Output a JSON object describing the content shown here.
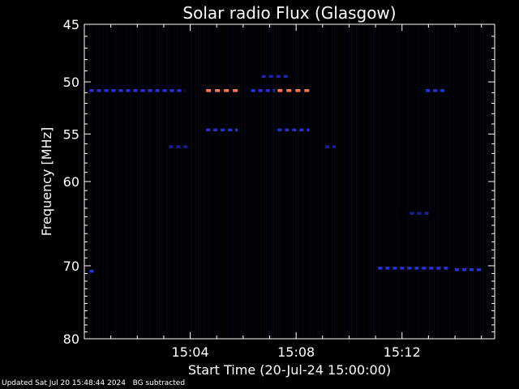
{
  "chart_data": {
    "type": "heatmap",
    "title": "Solar radio Flux (Glasgow)",
    "xlabel": "Start Time (20-Jul-24 15:00:00)",
    "ylabel": "Frequency [MHz]",
    "x_unit": "minutes after 15:00",
    "xlim": [
      0,
      15.5
    ],
    "ylim": [
      45,
      80
    ],
    "x_ticks": [
      {
        "value": 4,
        "label": "15:04"
      },
      {
        "value": 8,
        "label": "15:08"
      },
      {
        "value": 12,
        "label": "15:12"
      }
    ],
    "y_ticks": [
      {
        "value": 45,
        "label": "45"
      },
      {
        "value": 50,
        "label": "50"
      },
      {
        "value": 55,
        "label": "55"
      },
      {
        "value": 60,
        "label": "60"
      },
      {
        "value": 70,
        "label": "70"
      },
      {
        "value": 80,
        "label": "80"
      }
    ],
    "background_color": "#000000",
    "axis_color": "#ffffff",
    "features": [
      {
        "kind": "band",
        "freq": 50.8,
        "t_start": 0.2,
        "t_end": 3.8,
        "intensity": "medium",
        "color": "#2233dd"
      },
      {
        "kind": "band",
        "freq": 50.8,
        "t_start": 4.6,
        "t_end": 5.8,
        "intensity": "high",
        "color": "#ff7755"
      },
      {
        "kind": "band",
        "freq": 50.8,
        "t_start": 7.3,
        "t_end": 8.5,
        "intensity": "high",
        "color": "#ff7755"
      },
      {
        "kind": "band",
        "freq": 50.8,
        "t_start": 6.3,
        "t_end": 7.2,
        "intensity": "medium",
        "color": "#2233dd"
      },
      {
        "kind": "band",
        "freq": 50.8,
        "t_start": 12.9,
        "t_end": 13.6,
        "intensity": "medium",
        "color": "#2233dd"
      },
      {
        "kind": "band",
        "freq": 49.5,
        "t_start": 6.7,
        "t_end": 7.7,
        "intensity": "low",
        "color": "#1a22aa"
      },
      {
        "kind": "band",
        "freq": 54.6,
        "t_start": 4.6,
        "t_end": 5.8,
        "intensity": "medium",
        "color": "#2233cc"
      },
      {
        "kind": "band",
        "freq": 54.6,
        "t_start": 7.3,
        "t_end": 8.5,
        "intensity": "medium",
        "color": "#2233cc"
      },
      {
        "kind": "band",
        "freq": 56.3,
        "t_start": 3.2,
        "t_end": 3.9,
        "intensity": "low",
        "color": "#1a1f99"
      },
      {
        "kind": "band",
        "freq": 56.3,
        "t_start": 9.1,
        "t_end": 9.5,
        "intensity": "low",
        "color": "#1a1f99"
      },
      {
        "kind": "band",
        "freq": 63.6,
        "t_start": 12.3,
        "t_end": 13.0,
        "intensity": "low",
        "color": "#1a1f99"
      },
      {
        "kind": "band",
        "freq": 70.3,
        "t_start": 11.1,
        "t_end": 13.8,
        "intensity": "medium",
        "color": "#2233dd"
      },
      {
        "kind": "band",
        "freq": 70.5,
        "t_start": 14.0,
        "t_end": 15.0,
        "intensity": "medium",
        "color": "#2233dd"
      },
      {
        "kind": "band",
        "freq": 70.7,
        "t_start": 0.2,
        "t_end": 0.4,
        "intensity": "medium",
        "color": "#2233dd"
      }
    ]
  },
  "footer": {
    "updated": "Updated Sat Jul 20 15:48:44 2024",
    "note": "BG subtracted"
  }
}
